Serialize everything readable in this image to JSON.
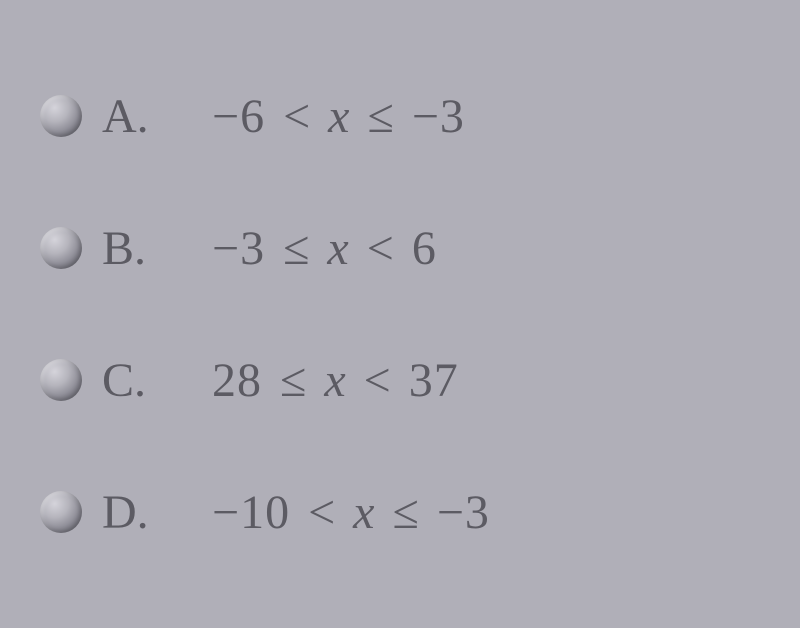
{
  "text_color": "#5c5b63",
  "background_color": "#b0afb8",
  "font_family": "Times New Roman",
  "font_size_pt": 36,
  "options": [
    {
      "letter": "A.",
      "left_value": "−6",
      "left_operator": "<",
      "variable": "x",
      "right_operator": "≤",
      "right_value": "−3"
    },
    {
      "letter": "B.",
      "left_value": "−3",
      "left_operator": "≤",
      "variable": "x",
      "right_operator": "<",
      "right_value": "6"
    },
    {
      "letter": "C.",
      "left_value": "28",
      "left_operator": "≤",
      "variable": "x",
      "right_operator": "<",
      "right_value": "37"
    },
    {
      "letter": "D.",
      "left_value": "−10",
      "left_operator": "<",
      "variable": "x",
      "right_operator": "≤",
      "right_value": "−3"
    }
  ]
}
